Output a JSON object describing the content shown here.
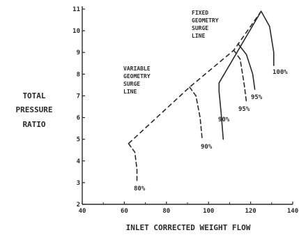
{
  "chart_data": {
    "type": "line",
    "title": "",
    "ylabel_lines": [
      "TOTAL",
      "PRESSURE",
      "RATIO"
    ],
    "xlabel": "INLET CORRECTED WEIGHT FLOW",
    "xlim": [
      40,
      140
    ],
    "ylim": [
      2,
      11
    ],
    "x_ticks": [
      "40",
      "60",
      "80",
      "100",
      "120",
      "140"
    ],
    "y_ticks": [
      "2",
      "3",
      "4",
      "5",
      "6",
      "7",
      "8",
      "9",
      "10",
      "11"
    ],
    "series": [
      {
        "name": "VARIABLE GEOMETRY SURGE LINE",
        "style": "dashed",
        "points": [
          [
            62,
            4.8
          ],
          [
            91,
            7.4
          ],
          [
            112,
            9.1
          ],
          [
            125,
            10.9
          ]
        ]
      },
      {
        "name": "FIXED GEOMETRY SURGE LINE",
        "style": "solid",
        "points": [
          [
            105,
            7.6
          ],
          [
            125,
            10.9
          ]
        ]
      }
    ],
    "speed_lines": [
      {
        "label": "80%",
        "style": "dashed",
        "points": [
          [
            62,
            4.8
          ],
          [
            65,
            4.4
          ],
          [
            66,
            3.6
          ],
          [
            66,
            3.0
          ]
        ]
      },
      {
        "label": "90%",
        "style": "dashed",
        "points": [
          [
            91,
            7.4
          ],
          [
            94,
            7.0
          ],
          [
            96,
            6.0
          ],
          [
            97,
            5.0
          ]
        ]
      },
      {
        "label": "90%",
        "style": "solid",
        "points": [
          [
            105,
            7.6
          ],
          [
            105,
            7.2
          ],
          [
            106,
            6.2
          ],
          [
            107,
            5.0
          ]
        ]
      },
      {
        "label": "95%",
        "style": "dashed",
        "points": [
          [
            112,
            9.1
          ],
          [
            115,
            8.7
          ],
          [
            117,
            7.5
          ],
          [
            118,
            6.7
          ]
        ]
      },
      {
        "label": "95%",
        "style": "solid",
        "points": [
          [
            114,
            9.4
          ],
          [
            118,
            8.9
          ],
          [
            121,
            8.0
          ],
          [
            122,
            7.3
          ]
        ]
      },
      {
        "label": "100%",
        "style": "solid",
        "points": [
          [
            125,
            10.9
          ],
          [
            129,
            10.2
          ],
          [
            131,
            9.0
          ],
          [
            131,
            8.4
          ]
        ]
      }
    ],
    "annotations": [
      {
        "lines": [
          "FIXED",
          "GEOMETRY",
          "SURGE",
          "LINE"
        ]
      },
      {
        "lines": [
          "VARIABLE",
          "GEOMETRY",
          "SURGE",
          "LINE"
        ]
      }
    ],
    "grid": false,
    "legend": "none"
  },
  "colors": {
    "ink": "#2a2a2a",
    "background": "#ffffff"
  }
}
